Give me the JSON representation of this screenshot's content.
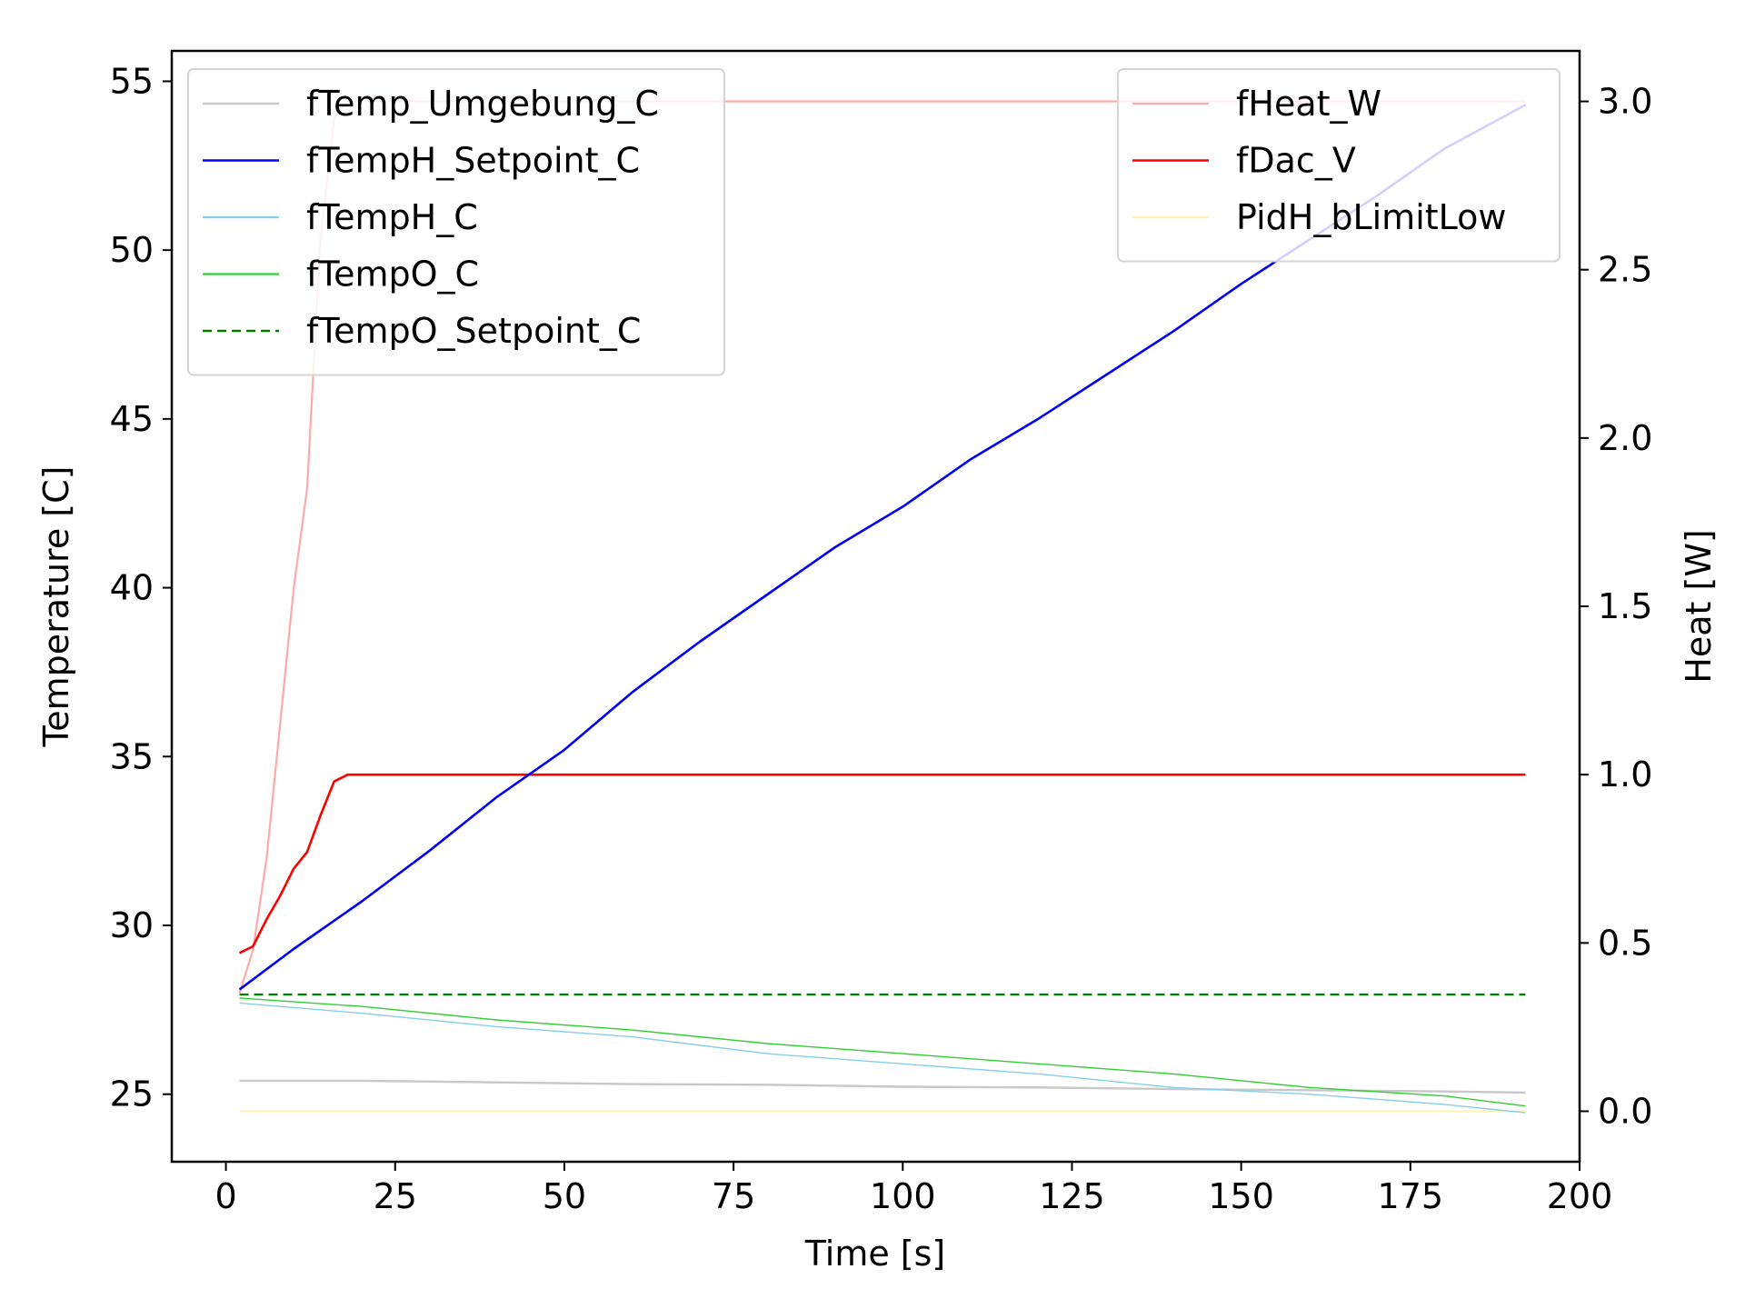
{
  "chart_data": {
    "type": "line",
    "title": "",
    "xlabel": "Time [s]",
    "ylabel": "Temperature [C]",
    "y2label": "Heat [W]",
    "xlim": [
      -8,
      200
    ],
    "ylim": [
      23.0,
      55.9
    ],
    "y2lim": [
      -0.15,
      3.15
    ],
    "xticks": [
      0,
      25,
      50,
      75,
      100,
      125,
      150,
      175,
      200
    ],
    "yticks": [
      25,
      30,
      35,
      40,
      45,
      50,
      55
    ],
    "y2ticks": [
      0.0,
      0.5,
      1.0,
      1.5,
      2.0,
      2.5,
      3.0
    ],
    "xtick_labels": [
      "0",
      "25",
      "50",
      "75",
      "100",
      "125",
      "150",
      "175",
      "200"
    ],
    "ytick_labels": [
      "25",
      "30",
      "35",
      "40",
      "45",
      "50",
      "55"
    ],
    "y2tick_labels": [
      "0.0",
      "0.5",
      "1.0",
      "1.5",
      "2.0",
      "2.5",
      "3.0"
    ],
    "grid": false,
    "legend_left_placement": "top-left",
    "legend_right_placement": "top-right",
    "series": [
      {
        "name": "fTemp_Umgebung_C",
        "axis": "left",
        "color": "#c8c8c8",
        "dash": "solid",
        "points": [
          [
            2,
            25.4
          ],
          [
            20,
            25.4
          ],
          [
            40,
            25.35
          ],
          [
            60,
            25.3
          ],
          [
            80,
            25.28
          ],
          [
            100,
            25.22
          ],
          [
            120,
            25.2
          ],
          [
            140,
            25.15
          ],
          [
            160,
            25.12
          ],
          [
            180,
            25.08
          ],
          [
            192,
            25.05
          ]
        ]
      },
      {
        "name": "fTempH_Setpoint_C",
        "axis": "left",
        "color": "#0000ff",
        "dash": "solid",
        "points": [
          [
            2,
            28.1
          ],
          [
            10,
            29.3
          ],
          [
            20,
            30.7
          ],
          [
            30,
            32.2
          ],
          [
            40,
            33.8
          ],
          [
            50,
            35.2
          ],
          [
            60,
            36.9
          ],
          [
            70,
            38.4
          ],
          [
            80,
            39.8
          ],
          [
            90,
            41.2
          ],
          [
            100,
            42.4
          ],
          [
            110,
            43.8
          ],
          [
            120,
            45.0
          ],
          [
            130,
            46.3
          ],
          [
            140,
            47.6
          ],
          [
            150,
            49.0
          ],
          [
            160,
            50.3
          ],
          [
            170,
            51.6
          ],
          [
            180,
            53.0
          ],
          [
            192,
            54.3
          ]
        ]
      },
      {
        "name": "fTempH_C",
        "axis": "left",
        "color": "#87ceeb",
        "dash": "solid",
        "points": [
          [
            2,
            27.7
          ],
          [
            20,
            27.4
          ],
          [
            40,
            27.0
          ],
          [
            60,
            26.7
          ],
          [
            80,
            26.2
          ],
          [
            100,
            25.9
          ],
          [
            120,
            25.6
          ],
          [
            140,
            25.2
          ],
          [
            160,
            25.0
          ],
          [
            180,
            24.7
          ],
          [
            192,
            24.45
          ]
        ]
      },
      {
        "name": "fTempO_C",
        "axis": "left",
        "color": "#32cd32",
        "dash": "solid",
        "points": [
          [
            2,
            27.85
          ],
          [
            20,
            27.6
          ],
          [
            40,
            27.2
          ],
          [
            60,
            26.9
          ],
          [
            80,
            26.5
          ],
          [
            100,
            26.2
          ],
          [
            120,
            25.9
          ],
          [
            140,
            25.6
          ],
          [
            160,
            25.2
          ],
          [
            180,
            24.95
          ],
          [
            192,
            24.65
          ]
        ]
      },
      {
        "name": "fTempO_Setpoint_C",
        "axis": "left",
        "color": "#008000",
        "dash": "dashed",
        "points": [
          [
            2,
            27.95
          ],
          [
            192,
            27.95
          ]
        ]
      },
      {
        "name": "fHeat_W",
        "axis": "right",
        "color": "#ffaaaa",
        "dash": "solid",
        "points": [
          [
            2,
            0.35
          ],
          [
            4,
            0.48
          ],
          [
            6,
            0.75
          ],
          [
            8,
            1.15
          ],
          [
            10,
            1.55
          ],
          [
            12,
            1.85
          ],
          [
            14,
            2.6
          ],
          [
            16,
            2.95
          ],
          [
            18,
            3.0
          ],
          [
            192,
            3.0
          ]
        ]
      },
      {
        "name": "fDac_V",
        "axis": "right",
        "color": "#ff0000",
        "dash": "solid",
        "points": [
          [
            2,
            0.47
          ],
          [
            4,
            0.49
          ],
          [
            6,
            0.57
          ],
          [
            8,
            0.64
          ],
          [
            10,
            0.72
          ],
          [
            12,
            0.77
          ],
          [
            14,
            0.88
          ],
          [
            16,
            0.98
          ],
          [
            18,
            1.0
          ],
          [
            192,
            1.0
          ]
        ]
      },
      {
        "name": "PidH_bLimitLow",
        "axis": "right",
        "color": "#fff2b3",
        "dash": "solid",
        "points": [
          [
            2,
            0.0
          ],
          [
            192,
            0.0
          ]
        ]
      }
    ],
    "legend_left": [
      "fTemp_Umgebung_C",
      "fTempH_Setpoint_C",
      "fTempH_C",
      "fTempO_C",
      "fTempO_Setpoint_C"
    ],
    "legend_right": [
      "fHeat_W",
      "fDac_V",
      "PidH_bLimitLow"
    ]
  }
}
